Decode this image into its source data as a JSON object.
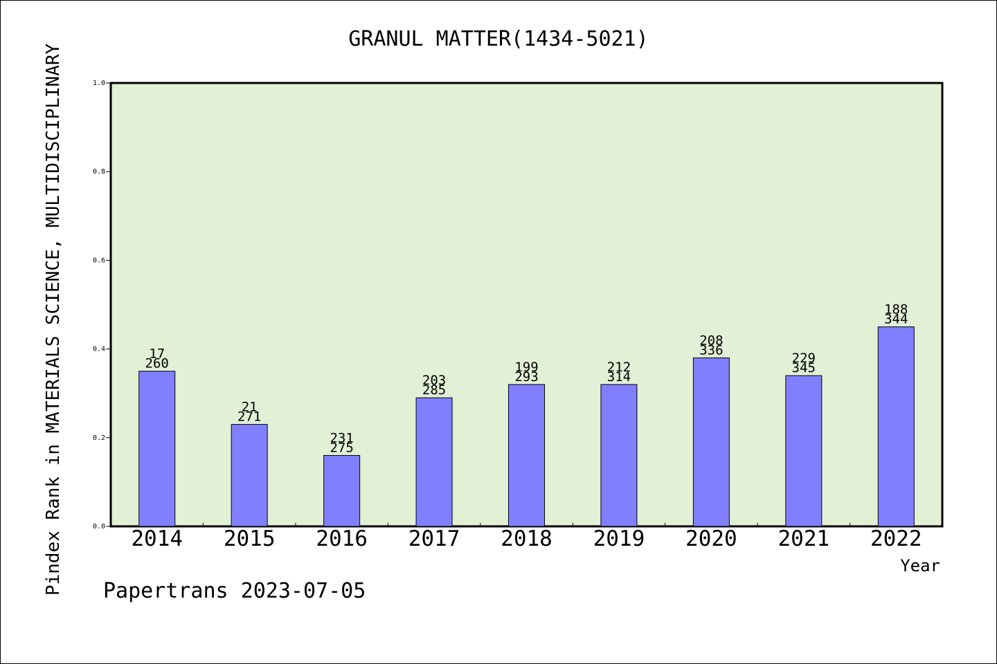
{
  "chart_data": {
    "type": "bar",
    "title": "GRANUL MATTER(1434-5021)",
    "xlabel": "Year",
    "ylabel": "Pindex Rank in MATERIALS SCIENCE, MULTIDISCIPLINARY",
    "ylim": [
      0,
      1.0
    ],
    "yticks": [
      "0.0",
      "0.2",
      "0.4",
      "0.6",
      "0.8",
      "1.0"
    ],
    "categories": [
      "2014",
      "2015",
      "2016",
      "2017",
      "2018",
      "2019",
      "2020",
      "2021",
      "2022"
    ],
    "values": [
      0.35,
      0.23,
      0.16,
      0.29,
      0.32,
      0.32,
      0.38,
      0.34,
      0.45
    ],
    "labels_top": [
      "17",
      "21",
      "231",
      "203",
      "199",
      "212",
      "208",
      "229",
      "188"
    ],
    "labels_bottom": [
      "260",
      "271",
      "275",
      "285",
      "293",
      "314",
      "336",
      "345",
      "344"
    ],
    "grid": false,
    "colors": {
      "plot_background": "#e2f0d6",
      "bar_fill": "#8080ff",
      "bar_stroke": "#000000"
    }
  },
  "footer": {
    "credit": "Papertrans 2023-07-05"
  }
}
